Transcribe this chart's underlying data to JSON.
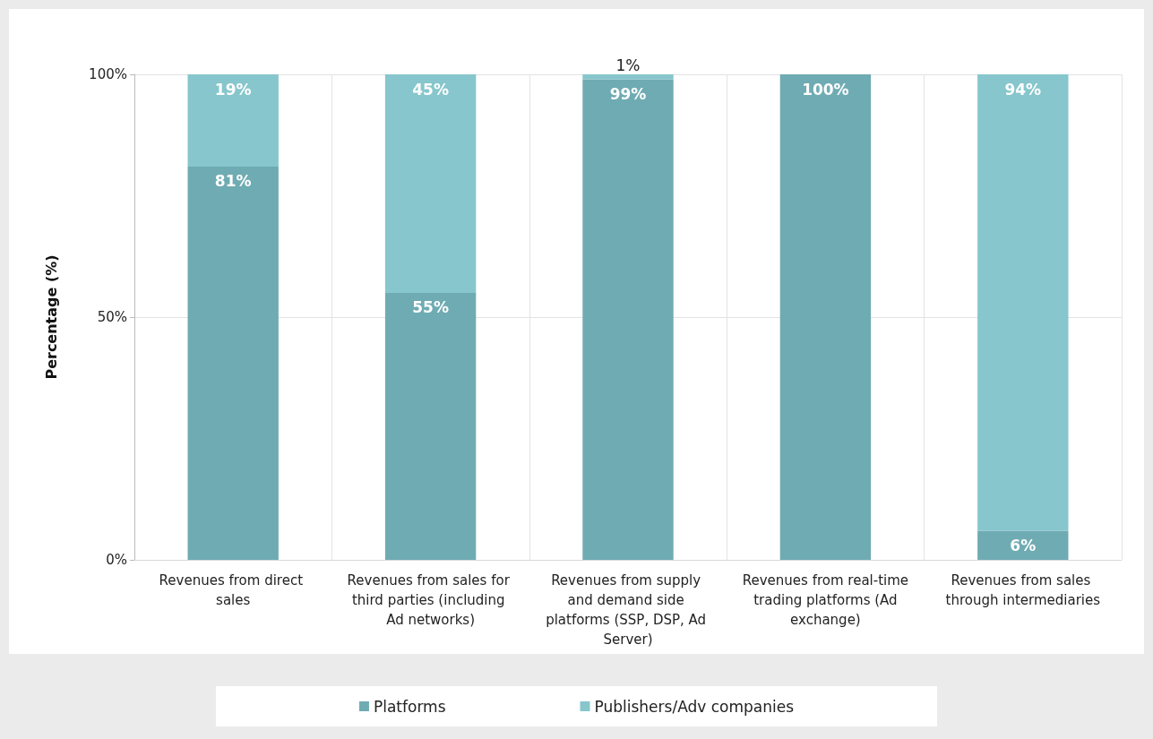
{
  "chart_data": {
    "type": "bar",
    "stacked": true,
    "ylabel": "Percentage (%)",
    "categories": [
      "Revenues from direct sales",
      "Revenues from sales for third parties (including Ad networks)",
      "Revenues from supply and demand side platforms (SSP, DSP, Ad Server)",
      "Revenues from real-time trading platforms (Ad exchange)",
      "Revenues from sales through intermediaries"
    ],
    "series": [
      {
        "name": "Platforms",
        "color": "#6fabb2",
        "values": [
          81,
          55,
          99,
          100,
          6
        ],
        "value_labels": [
          "81%",
          "55%",
          "99%",
          "100%",
          "6%"
        ]
      },
      {
        "name": "Publishers/Adv companies",
        "color": "#86c6cc",
        "values": [
          19,
          45,
          1,
          0,
          94
        ],
        "value_labels": [
          "19%",
          "45%",
          "1%",
          null,
          "94%"
        ]
      }
    ],
    "ylim": [
      0,
      100
    ],
    "yticks": [
      {
        "value": 0,
        "label": "0%"
      },
      {
        "value": 50,
        "label": "50%"
      },
      {
        "value": 100,
        "label": "100%"
      }
    ],
    "grid": true,
    "legend": "bottom"
  }
}
